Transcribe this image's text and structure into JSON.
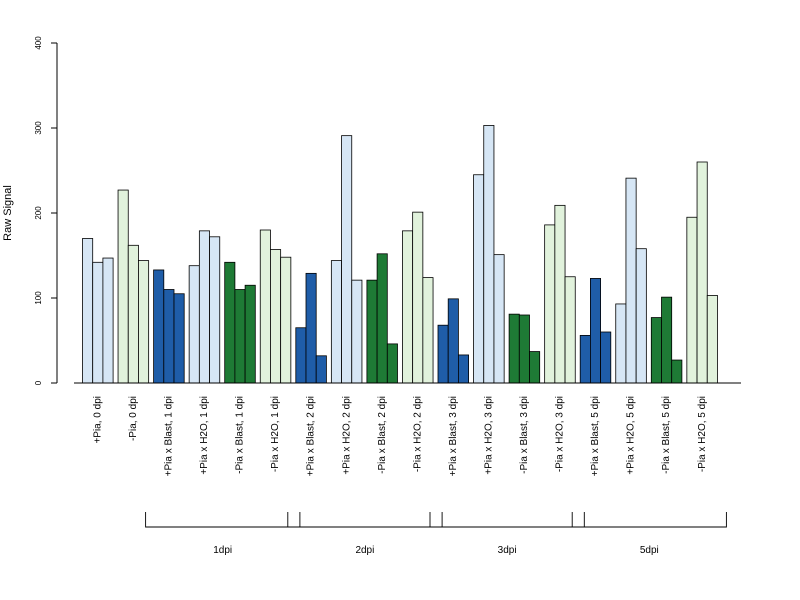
{
  "chart_data": {
    "type": "bar",
    "ylabel": "Raw Signal",
    "ylim": [
      0,
      400
    ],
    "yticks": [
      0,
      100,
      200,
      300,
      400
    ],
    "grid": false,
    "bars_per_group": 3,
    "colors": {
      "light_blue": "#D6E6F5",
      "light_green": "#E1F2DC",
      "dark_blue": "#1F5DA8",
      "dark_green": "#1E7A35",
      "stroke": "#000000"
    },
    "categories": [
      "+Pia, 0 dpi",
      "-Pia, 0 dpi",
      "+Pia x Blast, 1 dpi",
      "+Pia x H2O, 1 dpi",
      "-Pia x Blast, 1 dpi",
      "-Pia x H2O, 1 dpi",
      "+Pia x Blast, 2 dpi",
      "+Pia x H2O, 2 dpi",
      "-Pia x Blast, 2 dpi",
      "-Pia x H2O, 2 dpi",
      "+Pia x Blast, 3 dpi",
      "+Pia x H2O, 3 dpi",
      "-Pia x Blast, 3 dpi",
      "-Pia x H2O, 3 dpi",
      "+Pia x Blast, 5 dpi",
      "+Pia x H2O, 5 dpi",
      "-Pia x Blast, 5 dpi",
      "-Pia x H2O, 5 dpi"
    ],
    "group_colors": [
      "light_blue",
      "light_green",
      "dark_blue",
      "light_blue",
      "dark_green",
      "light_green",
      "dark_blue",
      "light_blue",
      "dark_green",
      "light_green",
      "dark_blue",
      "light_blue",
      "dark_green",
      "light_green",
      "dark_blue",
      "light_blue",
      "dark_green",
      "light_green"
    ],
    "values": [
      [
        170,
        142,
        147
      ],
      [
        227,
        162,
        144
      ],
      [
        133,
        110,
        105
      ],
      [
        138,
        179,
        172
      ],
      [
        142,
        110,
        115
      ],
      [
        180,
        157,
        148
      ],
      [
        65,
        129,
        32
      ],
      [
        144,
        291,
        121
      ],
      [
        121,
        152,
        46
      ],
      [
        179,
        201,
        124
      ],
      [
        68,
        99,
        33
      ],
      [
        245,
        303,
        151
      ],
      [
        81,
        80,
        37
      ],
      [
        186,
        209,
        125
      ],
      [
        56,
        123,
        60
      ],
      [
        93,
        241,
        158
      ],
      [
        77,
        101,
        27
      ],
      [
        195,
        260,
        103
      ]
    ],
    "brackets": [
      {
        "label": "1dpi",
        "from": 2,
        "to": 5
      },
      {
        "label": "2dpi",
        "from": 6,
        "to": 9
      },
      {
        "label": "3dpi",
        "from": 10,
        "to": 13
      },
      {
        "label": "5dpi",
        "from": 14,
        "to": 17
      }
    ]
  }
}
